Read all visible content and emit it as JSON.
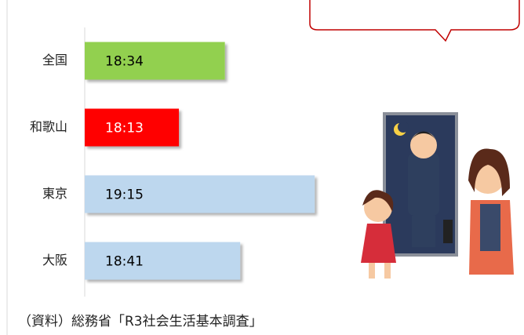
{
  "chart_data": {
    "type": "bar",
    "orientation": "horizontal",
    "categories": [
      "全国",
      "和歌山",
      "東京",
      "大阪"
    ],
    "values": [
      18.5667,
      18.2167,
      19.25,
      18.6833
    ],
    "value_labels": [
      "18:34",
      "18:13",
      "19:15",
      "18:41"
    ],
    "colors": [
      "#92d050",
      "#ff0000",
      "#bdd7ee",
      "#bdd7ee"
    ],
    "value_label_colors": [
      "#000000",
      "#ffffff",
      "#000000",
      "#000000"
    ],
    "xlim": [
      17.5,
      19.5
    ],
    "source": "（資料）総務省「R3社会生活基本調査」"
  }
}
